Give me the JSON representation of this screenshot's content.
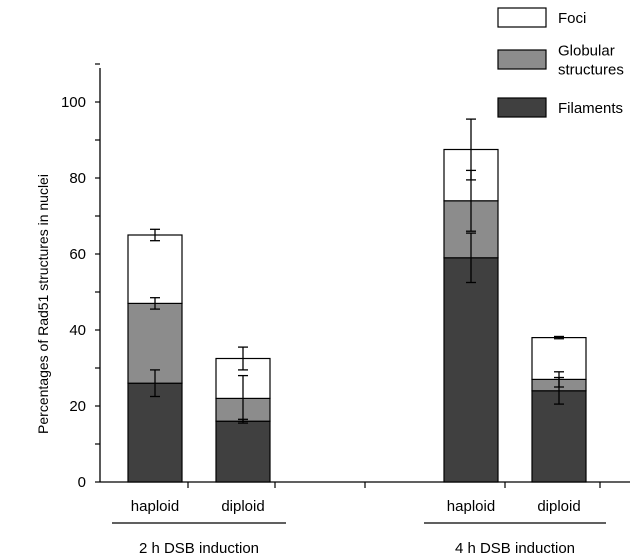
{
  "chart_data": {
    "type": "bar",
    "stacked": true,
    "ylabel": "Percentages of Rad51 structures in nuclei",
    "ylim": [
      0,
      110
    ],
    "yticks": [
      0,
      20,
      40,
      60,
      80,
      100
    ],
    "legend_position": "top-right",
    "colors": {
      "Filaments": "#404040",
      "Globular structures": "#8c8c8c",
      "Foci": "#ffffff"
    },
    "legend": [
      {
        "series": "Foci",
        "lines": [
          "Foci"
        ]
      },
      {
        "series": "Globular structures",
        "lines": [
          "Globular",
          "structures"
        ]
      },
      {
        "series": "Filaments",
        "lines": [
          "Filaments"
        ]
      }
    ],
    "groups": [
      {
        "label": "2 h DSB induction",
        "categories": [
          "haploid",
          "diploid"
        ]
      },
      {
        "label": "4 h DSB induction",
        "categories": [
          "haploid",
          "diploid"
        ]
      }
    ],
    "categories": [
      "haploid",
      "diploid",
      "haploid",
      "diploid"
    ],
    "series": [
      {
        "name": "Filaments",
        "values": [
          26,
          16,
          59,
          24
        ],
        "errors": [
          3.5,
          0.5,
          6.5,
          3.5
        ]
      },
      {
        "name": "Globular structures",
        "values": [
          21,
          6,
          15,
          3
        ],
        "errors": [
          1.5,
          6,
          8,
          2
        ]
      },
      {
        "name": "Foci",
        "values": [
          18,
          10.5,
          13.5,
          11
        ],
        "errors": [
          1.5,
          3,
          8,
          0.3
        ]
      }
    ]
  }
}
